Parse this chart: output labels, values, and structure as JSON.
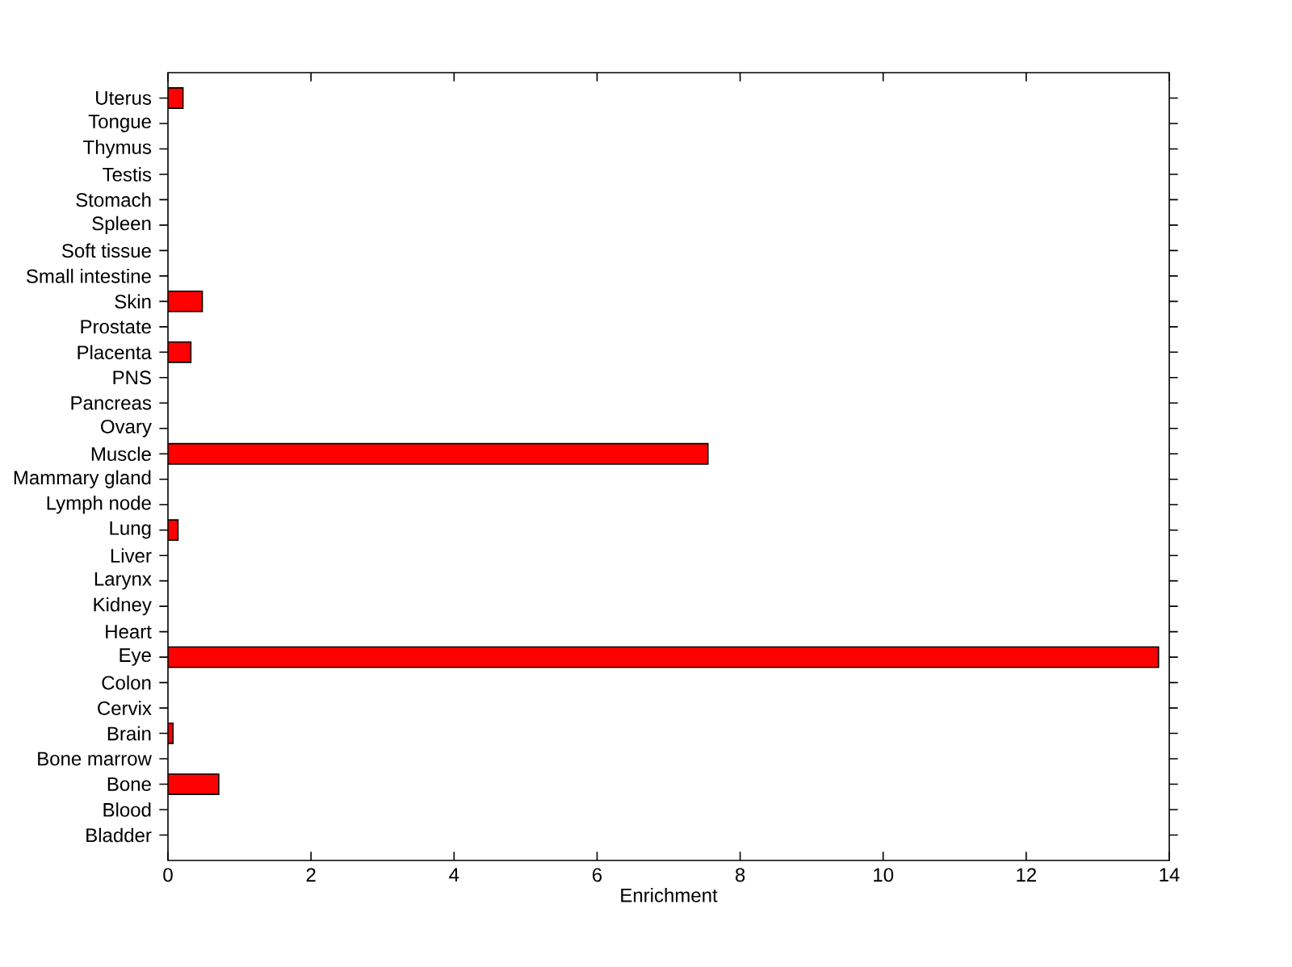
{
  "chart_data": {
    "type": "bar",
    "orientation": "horizontal",
    "xlabel": "Enrichment",
    "categories": [
      "Uterus",
      "Tongue",
      "Thymus",
      "Testis",
      "Stomach",
      "Spleen",
      "Soft tissue",
      "Small intestine",
      "Skin",
      "Prostate",
      "Placenta",
      "PNS",
      "Pancreas",
      "Ovary",
      "Muscle",
      "Mammary gland",
      "Lymph node",
      "Lung",
      "Liver",
      "Larynx",
      "Kidney",
      "Heart",
      "Eye",
      "Colon",
      "Cervix",
      "Brain",
      "Bone marrow",
      "Bone",
      "Blood",
      "Bladder"
    ],
    "values": [
      0.21,
      0,
      0,
      0,
      0,
      0,
      0,
      0,
      0.48,
      0,
      0.32,
      0,
      0,
      0,
      7.55,
      0,
      0,
      0.14,
      0,
      0,
      0,
      0,
      13.85,
      0,
      0,
      0.07,
      0,
      0.71,
      0,
      0
    ],
    "color": "#ff0000",
    "xlim": [
      0,
      14
    ],
    "xticks": [
      0,
      2,
      4,
      6,
      8,
      10,
      12,
      14
    ]
  }
}
